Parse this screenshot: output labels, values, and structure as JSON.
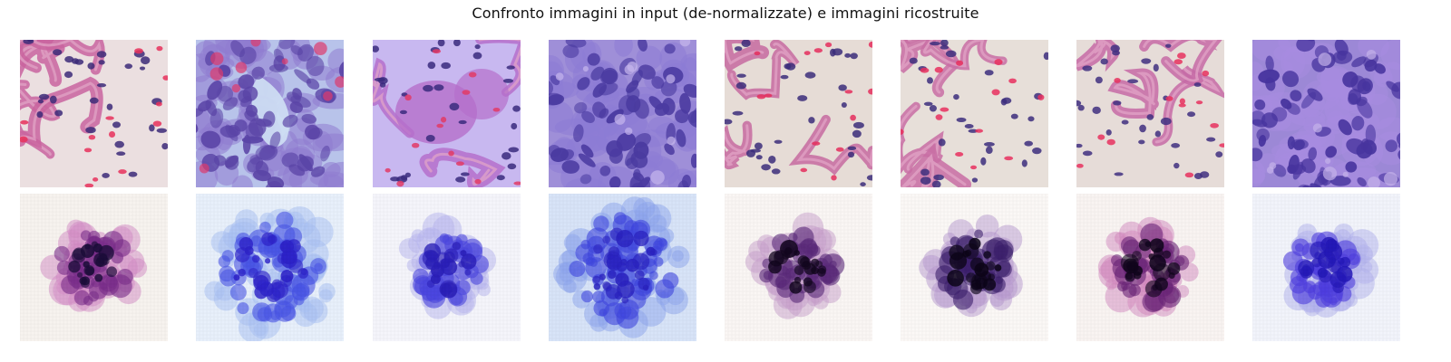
{
  "figure": {
    "title": "Confronto immagini in input (de-normalizzate) e immagini ricostruite",
    "rows": [
      {
        "kind": "input",
        "tiles": [
          {
            "scene": "alveolar-septa-sparse",
            "bg": "#ebdfe0",
            "nucleus": "#3c2a78",
            "tissue": "#c9649f",
            "accent": "#e8315c",
            "seed": 11
          },
          {
            "scene": "dense-cells-gap",
            "bg": "#b8c3ea",
            "nucleus": "#5a44a6",
            "tissue": "#8f7bd0",
            "accent": "#dd3b6c",
            "seed": 23
          },
          {
            "scene": "cluster-with-rbc",
            "bg": "#c8b8f0",
            "nucleus": "#3a2a7e",
            "tissue": "#b56fcb",
            "accent": "#e23a66",
            "seed": 37
          },
          {
            "scene": "dense-cells-full",
            "bg": "#9f8fd8",
            "nucleus": "#4a3aa0",
            "tissue": "#8c7cd6",
            "accent": "#c6b6ec",
            "seed": 41
          },
          {
            "scene": "septa-diagonal",
            "bg": "#e6dcd6",
            "nucleus": "#3b2d7a",
            "tissue": "#c66aa0",
            "accent": "#e42e5d",
            "seed": 53
          },
          {
            "scene": "septa-central",
            "bg": "#e7dfd9",
            "nucleus": "#3c2e7c",
            "tissue": "#c86da3",
            "accent": "#e8305e",
            "seed": 67
          },
          {
            "scene": "septa-branching",
            "bg": "#e6dcd8",
            "nucleus": "#402f80",
            "tissue": "#c56aa6",
            "accent": "#e6315f",
            "seed": 79
          },
          {
            "scene": "dense-cells-violet",
            "bg": "#9c88d6",
            "nucleus": "#47349e",
            "tissue": "#a88ce0",
            "accent": "#c4b2ea",
            "seed": 83
          }
        ]
      },
      {
        "kind": "reconstruction",
        "tiles": [
          {
            "scene": "recon-dark-magenta",
            "bg": "#f7f3ef",
            "core": "#1c0d3a",
            "mid": "#7a2d8a",
            "edge": "#d48cc6",
            "seed": 101
          },
          {
            "scene": "recon-blue-full",
            "bg": "#e8f0fb",
            "core": "#2d22c9",
            "mid": "#4a55e6",
            "edge": "#a8c0f4",
            "seed": 113
          },
          {
            "scene": "recon-blue-cluster",
            "bg": "#f5f5fb",
            "core": "#2a1fb8",
            "mid": "#4b46e0",
            "edge": "#b8b6f0",
            "seed": 127
          },
          {
            "scene": "recon-blue-dense",
            "bg": "#d8e4f8",
            "core": "#2a22c0",
            "mid": "#3f46e0",
            "edge": "#8ea6ee",
            "seed": 131
          },
          {
            "scene": "recon-dark-purple",
            "bg": "#faf6f4",
            "core": "#12061e",
            "mid": "#5a2a7a",
            "edge": "#c8a0cc",
            "seed": 149
          },
          {
            "scene": "recon-dark-core",
            "bg": "#fbf8f6",
            "core": "#0c0518",
            "mid": "#3c1f6c",
            "edge": "#b79ad0",
            "seed": 157
          },
          {
            "scene": "recon-dark-pink",
            "bg": "#f9f4f2",
            "core": "#10051c",
            "mid": "#6a2478",
            "edge": "#d38ac0",
            "seed": 163
          },
          {
            "scene": "recon-blue-violet",
            "bg": "#f2f4fb",
            "core": "#2418b8",
            "mid": "#4e3ee0",
            "edge": "#b2b2ee",
            "seed": 173
          }
        ]
      }
    ]
  }
}
